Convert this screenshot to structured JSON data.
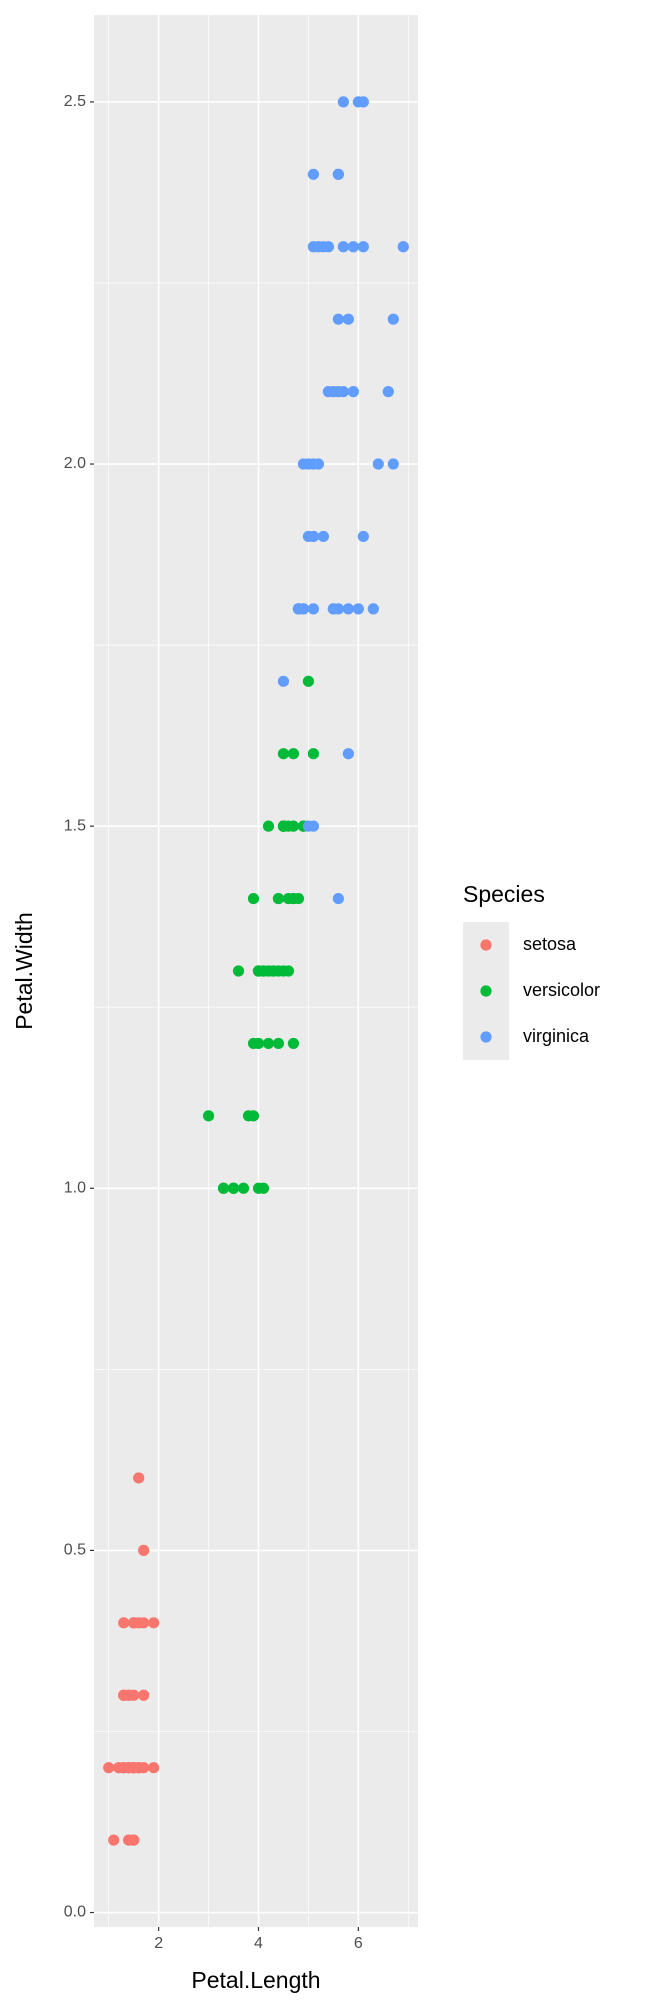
{
  "chart_data": {
    "type": "scatter",
    "x_label": "Petal.Length",
    "y_label": "Petal.Width",
    "legend_title": "Species",
    "legend": "right",
    "xlim": [
      0.705,
      7.195
    ],
    "ylim": [
      -0.02,
      2.62
    ],
    "xticks": [
      2,
      4,
      6
    ],
    "xminor": [
      1,
      3,
      5,
      7
    ],
    "yticks": [
      {
        "value": 0,
        "label": "0.0"
      },
      0.5,
      {
        "value": 1,
        "label": "1.0"
      },
      1.5,
      {
        "value": 2,
        "label": "2.0"
      },
      2.5
    ],
    "yminor": [
      0.25,
      0.75,
      1.25,
      1.75,
      2.25
    ],
    "grid": true,
    "series": [
      {
        "name": "setosa",
        "color": "#f8766d",
        "x": [
          1.4,
          1.4,
          1.3,
          1.5,
          1.4,
          1.7,
          1.4,
          1.5,
          1.4,
          1.5,
          1.5,
          1.6,
          1.4,
          1.1,
          1.2,
          1.5,
          1.3,
          1.4,
          1.7,
          1.5,
          1.7,
          1.5,
          1.0,
          1.7,
          1.9,
          1.6,
          1.6,
          1.5,
          1.4,
          1.6,
          1.6,
          1.5,
          1.5,
          1.4,
          1.5,
          1.2,
          1.3,
          1.4,
          1.3,
          1.5,
          1.3,
          1.3,
          1.3,
          1.6,
          1.9,
          1.4,
          1.6,
          1.4,
          1.5,
          1.4
        ],
        "values": [
          0.2,
          0.2,
          0.2,
          0.2,
          0.2,
          0.4,
          0.3,
          0.2,
          0.2,
          0.1,
          0.2,
          0.2,
          0.1,
          0.1,
          0.2,
          0.4,
          0.4,
          0.3,
          0.3,
          0.3,
          0.2,
          0.4,
          0.2,
          0.5,
          0.2,
          0.2,
          0.4,
          0.2,
          0.2,
          0.2,
          0.2,
          0.4,
          0.1,
          0.2,
          0.2,
          0.2,
          0.2,
          0.1,
          0.2,
          0.2,
          0.3,
          0.3,
          0.2,
          0.6,
          0.4,
          0.3,
          0.2,
          0.2,
          0.2,
          0.2
        ]
      },
      {
        "name": "versicolor",
        "color": "#00ba38",
        "x": [
          4.7,
          4.5,
          4.9,
          4.0,
          4.6,
          4.5,
          4.7,
          3.3,
          4.6,
          3.9,
          3.5,
          4.2,
          4.0,
          4.7,
          3.6,
          4.4,
          4.5,
          4.1,
          4.5,
          3.9,
          4.8,
          4.0,
          4.9,
          4.7,
          4.3,
          4.4,
          4.8,
          5.0,
          4.5,
          3.5,
          3.8,
          3.7,
          3.9,
          5.1,
          4.5,
          4.5,
          4.7,
          4.4,
          4.1,
          4.0,
          4.4,
          4.6,
          4.0,
          3.3,
          4.2,
          4.2,
          4.2,
          4.3,
          3.0,
          4.1
        ],
        "values": [
          1.4,
          1.5,
          1.5,
          1.3,
          1.5,
          1.3,
          1.6,
          1.0,
          1.3,
          1.4,
          1.0,
          1.5,
          1.0,
          1.4,
          1.3,
          1.4,
          1.5,
          1.0,
          1.5,
          1.1,
          1.8,
          1.3,
          1.5,
          1.2,
          1.3,
          1.4,
          1.4,
          1.7,
          1.5,
          1.0,
          1.1,
          1.0,
          1.2,
          1.6,
          1.5,
          1.6,
          1.5,
          1.3,
          1.3,
          1.3,
          1.2,
          1.4,
          1.2,
          1.0,
          1.3,
          1.2,
          1.3,
          1.3,
          1.1,
          1.3
        ]
      },
      {
        "name": "virginica",
        "color": "#619cff",
        "x": [
          6.0,
          5.1,
          5.9,
          5.6,
          5.8,
          6.6,
          4.5,
          6.3,
          5.8,
          6.1,
          5.1,
          5.3,
          5.5,
          5.0,
          5.1,
          5.3,
          5.5,
          6.7,
          6.9,
          5.0,
          5.7,
          4.9,
          6.7,
          4.9,
          5.7,
          6.0,
          4.8,
          4.9,
          5.6,
          5.8,
          6.1,
          6.4,
          5.6,
          5.1,
          5.6,
          6.1,
          5.6,
          5.5,
          4.8,
          5.4,
          5.6,
          5.1,
          5.1,
          5.9,
          5.7,
          5.2,
          5.0,
          5.2,
          5.4,
          5.1
        ],
        "values": [
          2.5,
          1.9,
          2.1,
          1.8,
          2.2,
          2.1,
          1.7,
          1.8,
          1.8,
          2.5,
          2.0,
          1.9,
          2.1,
          2.0,
          2.4,
          2.3,
          1.8,
          2.2,
          2.3,
          1.5,
          2.3,
          2.0,
          2.0,
          1.8,
          2.1,
          1.8,
          1.8,
          1.8,
          2.1,
          1.6,
          1.9,
          2.0,
          2.2,
          1.5,
          1.4,
          2.3,
          2.4,
          1.8,
          1.8,
          2.1,
          2.4,
          2.3,
          1.9,
          2.3,
          2.5,
          2.3,
          1.9,
          2.0,
          2.3,
          1.8
        ]
      }
    ]
  }
}
